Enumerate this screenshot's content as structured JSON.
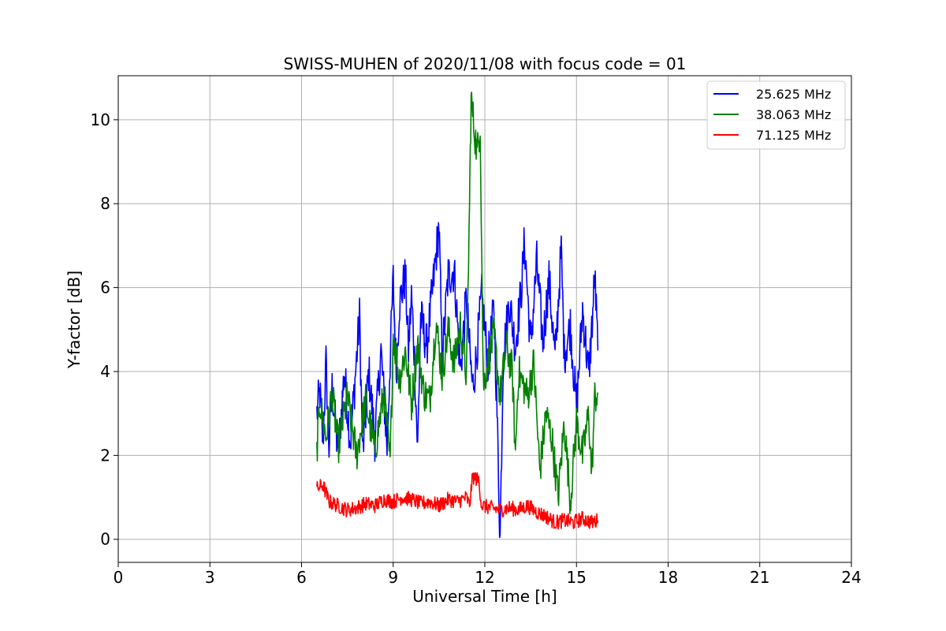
{
  "chart_data": {
    "type": "line",
    "title": "SWISS-MUHEN of 2020/11/08 with focus code = 01",
    "xlabel": "Universal Time [h]",
    "ylabel": "Y-factor [dB]",
    "xlim": [
      0,
      24
    ],
    "ylim": [
      -0.55,
      11.05
    ],
    "xticks": [
      0,
      3,
      6,
      9,
      12,
      15,
      18,
      21,
      24
    ],
    "xtick_labels": [
      "0",
      "3",
      "6",
      "9",
      "12",
      "15",
      "18",
      "21",
      "24"
    ],
    "yticks": [
      0,
      2,
      4,
      6,
      8,
      10
    ],
    "ytick_labels": [
      "0",
      "2",
      "4",
      "6",
      "8",
      "10"
    ],
    "grid": true,
    "legend_position": "top-right",
    "series": [
      {
        "name": "25.625 MHz",
        "color": "#0000ff",
        "points": [
          [
            6.5,
            3.0
          ],
          [
            6.6,
            3.5
          ],
          [
            6.7,
            2.3
          ],
          [
            6.8,
            4.2
          ],
          [
            6.9,
            2.2
          ],
          [
            7.0,
            3.6
          ],
          [
            7.2,
            2.0
          ],
          [
            7.4,
            4.0
          ],
          [
            7.6,
            2.3
          ],
          [
            7.8,
            4.3
          ],
          [
            7.9,
            5.3
          ],
          [
            8.0,
            2.0
          ],
          [
            8.2,
            4.0
          ],
          [
            8.4,
            2.4
          ],
          [
            8.6,
            4.5
          ],
          [
            8.8,
            2.2
          ],
          [
            8.9,
            4.3
          ],
          [
            9.0,
            6.2
          ],
          [
            9.1,
            4.0
          ],
          [
            9.2,
            5.6
          ],
          [
            9.4,
            6.3
          ],
          [
            9.5,
            4.5
          ],
          [
            9.6,
            5.8
          ],
          [
            9.7,
            4.3
          ],
          [
            9.8,
            2.1
          ],
          [
            9.9,
            5.3
          ],
          [
            10.1,
            4.6
          ],
          [
            10.3,
            6.0
          ],
          [
            10.5,
            7.5
          ],
          [
            10.6,
            4.3
          ],
          [
            10.8,
            6.3
          ],
          [
            11.0,
            6.4
          ],
          [
            11.2,
            4.0
          ],
          [
            11.4,
            5.8
          ],
          [
            11.5,
            4.5
          ],
          [
            11.6,
            3.6
          ],
          [
            11.7,
            4.2
          ],
          [
            11.9,
            5.8
          ],
          [
            12.1,
            4.2
          ],
          [
            12.3,
            5.5
          ],
          [
            12.4,
            3.0
          ],
          [
            12.5,
            0.0
          ],
          [
            12.6,
            4.3
          ],
          [
            12.8,
            5.7
          ],
          [
            13.0,
            4.6
          ],
          [
            13.2,
            6.0
          ],
          [
            13.3,
            7.1
          ],
          [
            13.5,
            4.6
          ],
          [
            13.7,
            6.6
          ],
          [
            13.9,
            4.7
          ],
          [
            14.1,
            6.2
          ],
          [
            14.3,
            4.3
          ],
          [
            14.5,
            6.9
          ],
          [
            14.6,
            4.4
          ],
          [
            14.8,
            5.1
          ],
          [
            15.0,
            3.1
          ],
          [
            15.2,
            5.5
          ],
          [
            15.4,
            3.9
          ],
          [
            15.5,
            5.0
          ],
          [
            15.6,
            6.3
          ],
          [
            15.7,
            4.5
          ]
        ]
      },
      {
        "name": "38.063 MHz",
        "color": "#008000",
        "points": [
          [
            6.5,
            2.1
          ],
          [
            6.6,
            3.3
          ],
          [
            6.8,
            2.4
          ],
          [
            7.0,
            3.5
          ],
          [
            7.2,
            2.2
          ],
          [
            7.5,
            3.4
          ],
          [
            7.8,
            2.0
          ],
          [
            8.1,
            3.3
          ],
          [
            8.4,
            2.1
          ],
          [
            8.7,
            3.5
          ],
          [
            8.9,
            1.8
          ],
          [
            9.0,
            4.9
          ],
          [
            9.2,
            3.8
          ],
          [
            9.4,
            4.5
          ],
          [
            9.6,
            3.2
          ],
          [
            9.8,
            4.7
          ],
          [
            10.0,
            3.5
          ],
          [
            10.2,
            3.3
          ],
          [
            10.4,
            5.2
          ],
          [
            10.6,
            3.9
          ],
          [
            10.8,
            5.0
          ],
          [
            11.0,
            4.2
          ],
          [
            11.2,
            5.1
          ],
          [
            11.4,
            3.9
          ],
          [
            11.5,
            8.0
          ],
          [
            11.55,
            10.5
          ],
          [
            11.65,
            9.8
          ],
          [
            11.75,
            9.2
          ],
          [
            11.85,
            9.9
          ],
          [
            11.95,
            3.7
          ],
          [
            12.1,
            4.2
          ],
          [
            12.3,
            4.9
          ],
          [
            12.5,
            3.4
          ],
          [
            12.7,
            4.6
          ],
          [
            12.9,
            4.0
          ],
          [
            13.0,
            2.0
          ],
          [
            13.1,
            4.0
          ],
          [
            13.4,
            3.4
          ],
          [
            13.6,
            4.2
          ],
          [
            13.8,
            1.6
          ],
          [
            14.0,
            3.0
          ],
          [
            14.2,
            2.4
          ],
          [
            14.4,
            1.0
          ],
          [
            14.6,
            2.8
          ],
          [
            14.8,
            0.9
          ],
          [
            15.0,
            2.8
          ],
          [
            15.2,
            2.0
          ],
          [
            15.4,
            3.0
          ],
          [
            15.5,
            1.5
          ],
          [
            15.6,
            3.4
          ],
          [
            15.7,
            3.5
          ]
        ]
      },
      {
        "name": "71.125 MHz",
        "color": "#ff0000",
        "points": [
          [
            6.5,
            1.2
          ],
          [
            6.7,
            1.3
          ],
          [
            6.9,
            0.9
          ],
          [
            7.2,
            0.8
          ],
          [
            7.5,
            0.7
          ],
          [
            7.8,
            0.75
          ],
          [
            8.1,
            0.85
          ],
          [
            8.4,
            0.8
          ],
          [
            8.7,
            0.95
          ],
          [
            9.0,
            0.9
          ],
          [
            9.3,
            1.0
          ],
          [
            9.6,
            0.95
          ],
          [
            9.9,
            0.85
          ],
          [
            10.2,
            0.9
          ],
          [
            10.5,
            0.8
          ],
          [
            10.8,
            0.95
          ],
          [
            11.1,
            0.9
          ],
          [
            11.4,
            1.0
          ],
          [
            11.5,
            0.8
          ],
          [
            11.6,
            1.5
          ],
          [
            11.8,
            1.4
          ],
          [
            11.9,
            0.8
          ],
          [
            12.2,
            0.75
          ],
          [
            12.5,
            0.7
          ],
          [
            12.8,
            0.75
          ],
          [
            13.1,
            0.7
          ],
          [
            13.4,
            0.8
          ],
          [
            13.7,
            0.65
          ],
          [
            14.0,
            0.55
          ],
          [
            14.3,
            0.4
          ],
          [
            14.6,
            0.45
          ],
          [
            14.9,
            0.4
          ],
          [
            15.2,
            0.5
          ],
          [
            15.5,
            0.4
          ],
          [
            15.7,
            0.45
          ]
        ]
      }
    ]
  }
}
